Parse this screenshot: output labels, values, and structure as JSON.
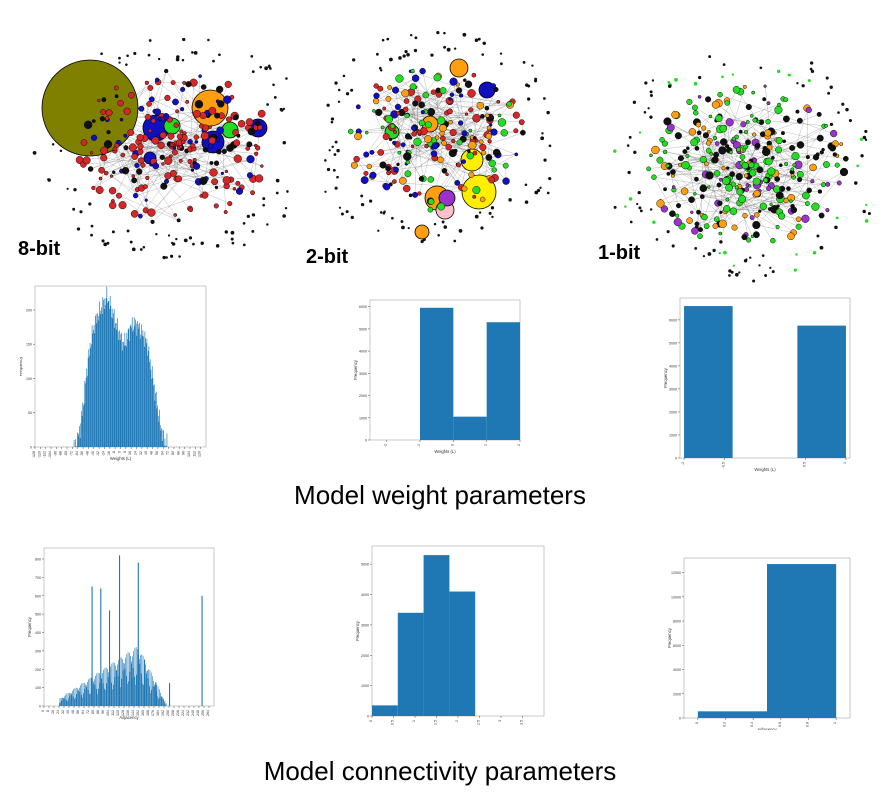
{
  "colors": {
    "bar": "#1f77b4",
    "node_red": "#d62728",
    "node_blue": "#1010c0",
    "node_orange": "#ff9f10",
    "node_green": "#22dd22",
    "node_olive": "#7f7f00",
    "node_yellow": "#ffee00",
    "node_purple": "#9933cc",
    "node_pink": "#ffc0cb",
    "node_black": "#111111",
    "edge": "#777777"
  },
  "graphs": [
    {
      "label": "8-bit",
      "palette": [
        "node_red",
        "node_red",
        "node_red",
        "node_red",
        "node_blue",
        "node_black"
      ]
    },
    {
      "label": "2-bit",
      "palette": [
        "node_red",
        "node_red",
        "node_blue",
        "node_orange",
        "node_green",
        "node_black"
      ]
    },
    {
      "label": "1-bit",
      "palette": [
        "node_green",
        "node_orange",
        "node_purple",
        "node_black",
        "node_green",
        "node_black"
      ]
    }
  ],
  "sections": {
    "weights_title": "Model weight parameters",
    "connectivity_title": "Model connectivity parameters"
  },
  "chart_data": [
    {
      "id": "weights-8bit",
      "type": "bar",
      "title": "",
      "xlabel": "Weights (L)",
      "ylabel": "Frequency",
      "xlim": [
        -128,
        128
      ],
      "ylim": [
        0,
        235
      ],
      "yticks": [
        0,
        50,
        100,
        150,
        200
      ],
      "xticks": [
        -128,
        -120,
        -112,
        -104,
        -96,
        -88,
        -80,
        -72,
        -64,
        -56,
        -48,
        -40,
        -32,
        -24,
        -16,
        -8,
        0,
        8,
        16,
        24,
        32,
        40,
        48,
        56,
        64,
        72,
        80,
        88,
        96,
        104,
        112,
        120
      ],
      "profile": [
        [
          -128,
          0
        ],
        [
          -70,
          0
        ],
        [
          -66,
          5
        ],
        [
          -60,
          30
        ],
        [
          -55,
          70
        ],
        [
          -50,
          115
        ],
        [
          -45,
          150
        ],
        [
          -40,
          175
        ],
        [
          -35,
          190
        ],
        [
          -30,
          200
        ],
        [
          -25,
          210
        ],
        [
          -20,
          220
        ],
        [
          -15,
          205
        ],
        [
          -10,
          190
        ],
        [
          -5,
          175
        ],
        [
          0,
          160
        ],
        [
          5,
          150
        ],
        [
          10,
          160
        ],
        [
          15,
          175
        ],
        [
          20,
          180
        ],
        [
          25,
          178
        ],
        [
          30,
          170
        ],
        [
          35,
          162
        ],
        [
          40,
          150
        ],
        [
          45,
          120
        ],
        [
          50,
          90
        ],
        [
          55,
          60
        ],
        [
          60,
          30
        ],
        [
          65,
          12
        ],
        [
          70,
          3
        ],
        [
          72,
          0
        ],
        [
          128,
          0
        ]
      ]
    },
    {
      "id": "weights-2bit",
      "type": "bar",
      "title": "",
      "xlabel": "Weights (L)",
      "ylabel": "Frequency",
      "xlim": [
        -2.5,
        2.0
      ],
      "ylim": [
        0,
        6300
      ],
      "yticks": [
        0,
        1000,
        2000,
        3000,
        4000,
        5000,
        6000
      ],
      "xticks": [
        -2,
        -1,
        0,
        1,
        2
      ],
      "bin_edges": [
        -1.0,
        0.0,
        1.0,
        2.0
      ],
      "values": [
        5950,
        1050,
        5300
      ]
    },
    {
      "id": "weights-1bit",
      "type": "bar",
      "title": "",
      "xlabel": "Weights (L)",
      "ylabel": "Frequency",
      "xlim": [
        -1.05,
        1.05
      ],
      "ylim": [
        0,
        6950
      ],
      "yticks": [
        0,
        1000,
        2000,
        3000,
        4000,
        5000,
        6000
      ],
      "xticks": [
        -1.0,
        -0.5,
        0.5,
        1.0
      ],
      "bin_edges": [
        -1.0,
        -0.4,
        0.4,
        1.0
      ],
      "values": [
        6600,
        0,
        5750
      ]
    },
    {
      "id": "adjacency-8bit",
      "type": "bar",
      "title": "",
      "xlabel": "Adjacency",
      "ylabel": "Frequency",
      "xlim": [
        0,
        272
      ],
      "ylim": [
        0,
        860
      ],
      "yticks": [
        0,
        100,
        200,
        300,
        400,
        500,
        600,
        700,
        800
      ],
      "xticks": [
        0,
        8,
        16,
        24,
        32,
        40,
        48,
        56,
        64,
        72,
        80,
        88,
        96,
        104,
        112,
        120,
        128,
        136,
        144,
        152,
        160,
        168,
        176,
        184,
        192,
        200,
        208,
        216,
        224,
        232,
        240,
        248,
        256,
        264
      ],
      "spikes": [
        [
          76,
          650
        ],
        [
          90,
          640
        ],
        [
          104,
          520
        ],
        [
          120,
          820
        ],
        [
          150,
          780
        ],
        [
          160,
          250
        ],
        [
          140,
          150
        ],
        [
          178,
          130
        ],
        [
          200,
          125
        ],
        [
          252,
          600
        ]
      ]
    },
    {
      "id": "adjacency-2bit",
      "type": "bar",
      "title": "",
      "xlabel": "Adjacency",
      "ylabel": "Frequency",
      "xlim": [
        0,
        4.0
      ],
      "ylim": [
        0,
        5600
      ],
      "yticks": [
        0,
        1000,
        2000,
        3000,
        4000,
        5000
      ],
      "xticks": [
        0.0,
        0.5,
        1.0,
        1.5,
        2.0,
        2.5,
        3.0,
        3.5
      ],
      "bin_edges": [
        0.0,
        0.6,
        1.2,
        1.8,
        2.4,
        3.0
      ],
      "values": [
        350,
        3400,
        5300,
        4100,
        0
      ]
    },
    {
      "id": "adjacency-1bit",
      "type": "bar",
      "title": "",
      "xlabel": "Adjacency",
      "ylabel": "Frequency",
      "xlim": [
        -0.1,
        1.1
      ],
      "ylim": [
        0,
        13200
      ],
      "yticks": [
        0,
        2000,
        4000,
        6000,
        8000,
        10000,
        12000
      ],
      "xticks": [
        0.0,
        0.2,
        0.4,
        0.6,
        0.8,
        1.0
      ],
      "bin_edges": [
        0.0,
        0.5,
        1.0
      ],
      "values": [
        550,
        12700
      ]
    }
  ]
}
